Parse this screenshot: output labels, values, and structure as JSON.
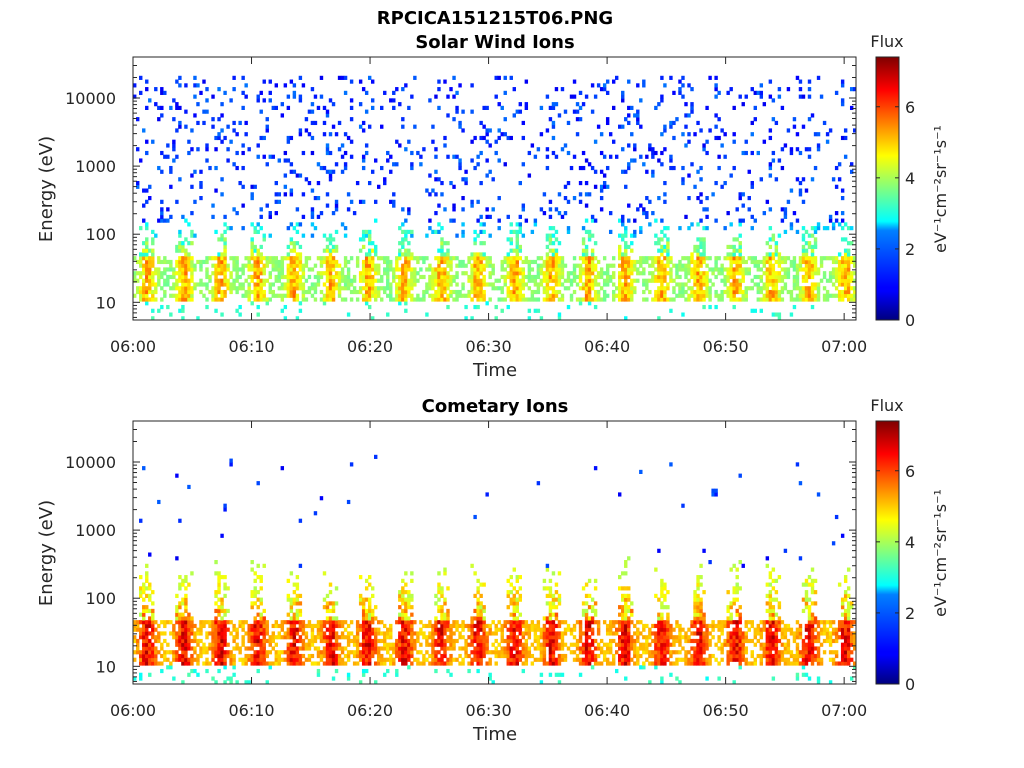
{
  "figure": {
    "title": "RPCICA151215T06.PNG"
  },
  "chart_data": [
    {
      "type": "heatmap",
      "title": "Solar Wind Ions",
      "xlabel": "Time",
      "ylabel": "Energy (eV)",
      "x_range": [
        "06:00",
        "07:01"
      ],
      "x_ticks": [
        "06:00",
        "06:10",
        "06:20",
        "06:30",
        "06:40",
        "06:50",
        "07:00"
      ],
      "y_scale": "log",
      "y_range": [
        5.5,
        40000
      ],
      "y_ticks": [
        10,
        100,
        1000,
        10000
      ],
      "y_tick_labels": [
        "10",
        "100",
        "1000",
        "10000"
      ],
      "colorbar": {
        "label": "Flux",
        "units": "eV⁻¹cm⁻²sr⁻¹s⁻¹",
        "range": [
          0,
          7.4
        ],
        "ticks": [
          0,
          2,
          4,
          6
        ],
        "tick_labels": [
          "0",
          "2",
          "4",
          "6"
        ],
        "colormap": "jet"
      },
      "features": {
        "core_energy_range_eV": [
          13,
          45
        ],
        "core_flux_range": [
          3.0,
          5.8
        ],
        "burst_period_min": 3.1,
        "background_energy_range_eV": [
          150,
          20000
        ],
        "background_flux_range": [
          0.8,
          1.8
        ]
      }
    },
    {
      "type": "heatmap",
      "title": "Cometary Ions",
      "xlabel": "Time",
      "ylabel": "Energy (eV)",
      "x_range": [
        "06:00",
        "07:01"
      ],
      "x_ticks": [
        "06:00",
        "06:10",
        "06:20",
        "06:30",
        "06:40",
        "06:50",
        "07:00"
      ],
      "y_scale": "log",
      "y_range": [
        5.5,
        40000
      ],
      "y_ticks": [
        10,
        100,
        1000,
        10000
      ],
      "y_tick_labels": [
        "10",
        "100",
        "1000",
        "10000"
      ],
      "colorbar": {
        "label": "Flux",
        "units": "eV⁻¹cm⁻²sr⁻¹s⁻¹",
        "range": [
          0,
          7.4
        ],
        "ticks": [
          0,
          2,
          4,
          6
        ],
        "tick_labels": [
          "0",
          "2",
          "4",
          "6"
        ],
        "colormap": "jet"
      },
      "features": {
        "core_energy_range_eV": [
          13,
          45
        ],
        "core_flux_range": [
          4.2,
          7.2
        ],
        "burst_period_min": 3.1,
        "burst_tail_max_energy_eV": 400,
        "background_energy_range_eV": [
          300,
          12000
        ],
        "background_flux_range": [
          0.8,
          1.6
        ]
      }
    }
  ]
}
